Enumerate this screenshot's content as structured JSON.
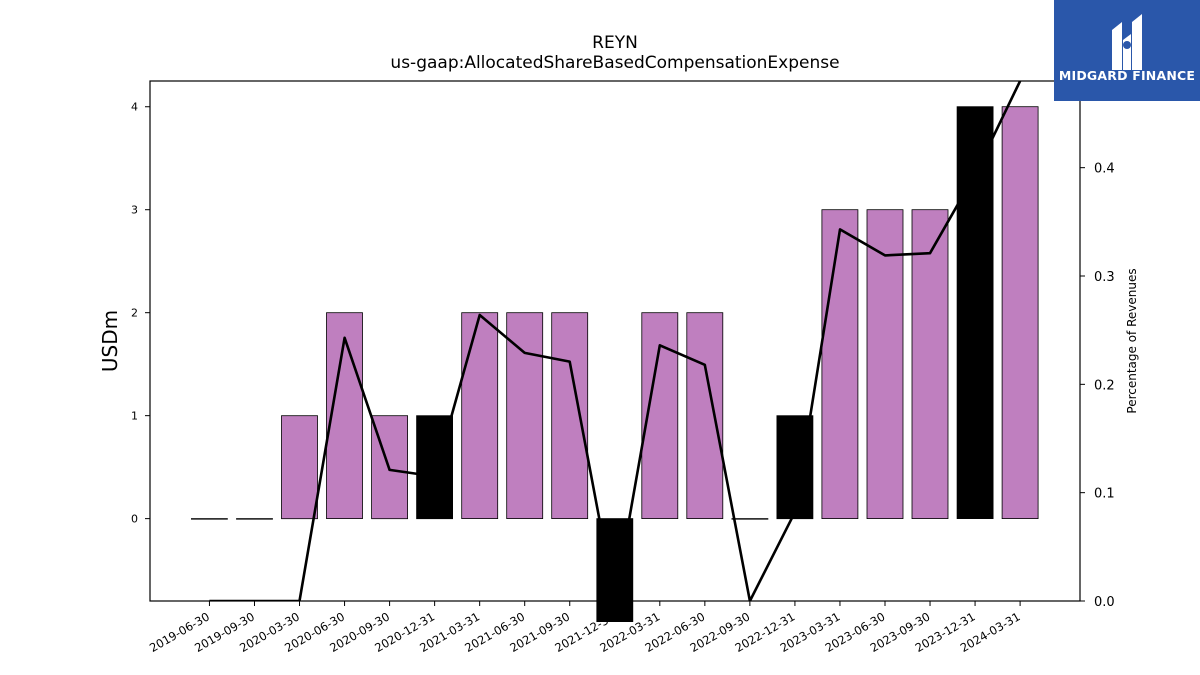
{
  "header": {
    "ticker": "REYN",
    "concept": "us-gaap:AllocatedShareBasedCompensationExpense"
  },
  "logo": {
    "text": "MIDGARD FINANCE",
    "background": "#2a57aa"
  },
  "colors": {
    "bar_positive": "#bf7fbf",
    "bar_change": "#000000",
    "line": "#000000"
  },
  "chart_data": {
    "type": "bar",
    "title": "REYN",
    "subtitle": "us-gaap:AllocatedShareBasedCompensationExpense",
    "categories": [
      "2019-06-30",
      "2019-09-30",
      "2020-03-30",
      "2020-06-30",
      "2020-09-30",
      "2020-12-31",
      "2021-03-31",
      "2021-06-30",
      "2021-09-30",
      "2021-12-31",
      "2022-03-31",
      "2022-06-30",
      "2022-09-30",
      "2022-12-31",
      "2023-03-31",
      "2023-06-30",
      "2023-09-30",
      "2023-12-31",
      "2024-03-31"
    ],
    "series": [
      {
        "type": "bar",
        "axis": "left",
        "values": [
          0,
          0,
          1,
          2,
          1,
          1,
          2,
          2,
          2,
          -1,
          2,
          2,
          0,
          1,
          3,
          3,
          3,
          4,
          4
        ],
        "highlight": [
          false,
          false,
          false,
          false,
          false,
          true,
          false,
          false,
          false,
          true,
          false,
          false,
          false,
          true,
          false,
          false,
          false,
          true,
          false
        ]
      },
      {
        "type": "line",
        "axis": "right",
        "values": [
          0.0,
          0.0,
          0.0,
          0.243,
          0.121,
          0.115,
          0.264,
          0.229,
          0.221,
          0.0,
          0.236,
          0.218,
          0.0,
          0.082,
          0.343,
          0.319,
          0.321,
          0.394,
          0.48
        ]
      }
    ],
    "ylabel": "USDm",
    "ylim": [
      -0.8,
      4.25
    ],
    "yticks": [
      0,
      1,
      2,
      3,
      4
    ],
    "y2label": "Percentage of Revenues",
    "y2lim": [
      0.0,
      0.48
    ],
    "y2ticks": [
      "0.0",
      "0.1",
      "0.2",
      "0.3",
      "0.4"
    ],
    "grid": false,
    "legend": "none"
  }
}
